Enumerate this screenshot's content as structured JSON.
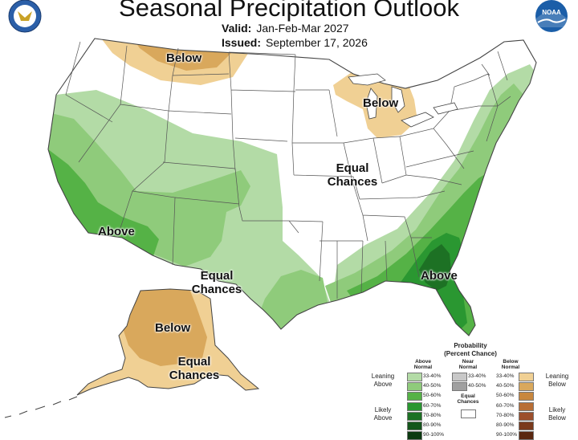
{
  "header": {
    "title": "Seasonal Precipitation Outlook",
    "valid_label": "Valid:",
    "valid_value": "Jan-Feb-Mar 2027",
    "issued_label": "Issued:",
    "issued_value": "September 17, 2026",
    "noaa_logo_text": "NOAA"
  },
  "map_labels": {
    "below_north": "Below",
    "below_great_lakes": "Below",
    "equal_chances_central_1": "Equal",
    "equal_chances_central_2": "Chances",
    "above_west": "Above",
    "equal_chances_texas_1": "Equal",
    "equal_chances_texas_2": "Chances",
    "above_southeast": "Above",
    "below_alaska": "Below",
    "equal_chances_alaska_1": "Equal",
    "equal_chances_alaska_2": "Chances"
  },
  "colors": {
    "above_33_40": "#b3dba6",
    "above_40_50": "#8fcb7b",
    "above_50_60": "#55b246",
    "above_60_70": "#2a9731",
    "above_70_80": "#1d7124",
    "above_80_90": "#14561b",
    "above_90_100": "#0b3a10",
    "near_33_40": "#c8c8c8",
    "near_40_50": "#a0a0a0",
    "below_33_40": "#f0d094",
    "below_40_50": "#d9a85c",
    "below_50_60": "#c8873e",
    "below_60_70": "#b86e35",
    "below_70_80": "#9c4f2c",
    "below_80_90": "#7a3a1c",
    "below_90_100": "#5a2810",
    "equal": "#ffffff",
    "borders": "#555555"
  },
  "legend": {
    "title_1": "Probability",
    "title_2": "(Percent Chance)",
    "above_header_1": "Above",
    "above_header_2": "Normal",
    "near_header_1": "Near",
    "near_header_2": "Normal",
    "below_header_1": "Below",
    "below_header_2": "Normal",
    "above_items": [
      "33-40%",
      "40-50%",
      "50-60%",
      "60-70%",
      "70-80%",
      "80-90%",
      "90-100%"
    ],
    "near_items": [
      "33-40%",
      "40-50%"
    ],
    "below_items": [
      "33-40%",
      "40-50%",
      "50-60%",
      "60-70%",
      "70-80%",
      "80-90%",
      "90-100%"
    ],
    "equal_1": "Equal",
    "equal_2": "Chances",
    "leaning_above_1": "Leaning",
    "leaning_above_2": "Above",
    "likely_above_1": "Likely",
    "likely_above_2": "Above",
    "leaning_below_1": "Leaning",
    "leaning_below_2": "Below",
    "likely_below_1": "Likely",
    "likely_below_2": "Below"
  }
}
